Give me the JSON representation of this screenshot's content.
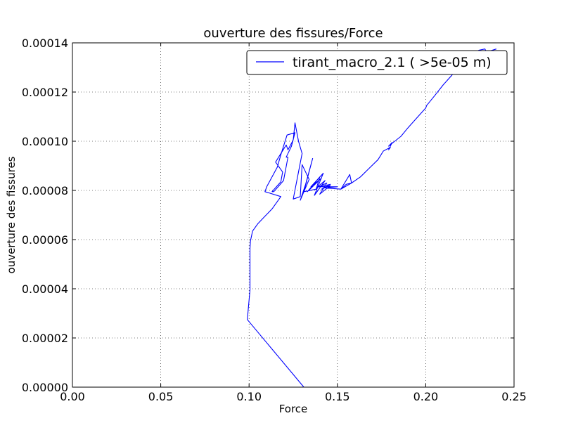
{
  "chart_data": {
    "type": "line",
    "title": "ouverture des fissures/Force",
    "xlabel": "Force",
    "ylabel": "ouverture des fissures",
    "xlim": [
      0,
      0.25
    ],
    "ylim": [
      0,
      0.00014
    ],
    "x_ticks": [
      0.0,
      0.05,
      0.1,
      0.15,
      0.2,
      0.25
    ],
    "x_tick_labels": [
      "0.00",
      "0.05",
      "0.10",
      "0.15",
      "0.20",
      "0.25"
    ],
    "y_ticks": [
      0,
      2e-05,
      4e-05,
      6e-05,
      8e-05,
      0.0001,
      0.00012,
      0.00014
    ],
    "y_tick_labels": [
      "0.00000",
      "0.00002",
      "0.00004",
      "0.00006",
      "0.00008",
      "0.00010",
      "0.00012",
      "0.00014"
    ],
    "grid": true,
    "legend_position": "top-right",
    "series": [
      {
        "name": "tirant_macro_2.1 ( >5e-05 m)",
        "color": "#0000ff",
        "x": [
          0.131,
          0.099,
          0.1005,
          0.1005,
          0.1008,
          0.102,
          0.105,
          0.109,
          0.113,
          0.118,
          0.109,
          0.11,
          0.116,
          0.118,
          0.1215,
          0.126,
          0.124,
          0.121,
          0.122,
          0.1195,
          0.114,
          0.113,
          0.118,
          0.119,
          0.115,
          0.121,
          0.122,
          0.125,
          0.126,
          0.128,
          0.13,
          0.125,
          0.129,
          0.13,
          0.134,
          0.129,
          0.132,
          0.136,
          0.131,
          0.138,
          0.14,
          0.133,
          0.141,
          0.135,
          0.142,
          0.137,
          0.143,
          0.138,
          0.144,
          0.14,
          0.146,
          0.141,
          0.146,
          0.14,
          0.15,
          0.143,
          0.152,
          0.155,
          0.158,
          0.157,
          0.152,
          0.158,
          0.163,
          0.168,
          0.173,
          0.176,
          0.18,
          0.179,
          0.181,
          0.179,
          0.186,
          0.19,
          0.195,
          0.2,
          0.2005,
          0.205,
          0.21,
          0.215,
          0.22,
          0.225,
          0.23,
          0.2335,
          0.235,
          0.2355,
          0.24
        ],
        "y": [
          0.0,
          2.75e-05,
          3.95e-05,
          5.65e-05,
          5.95e-05,
          6.35e-05,
          6.65e-05,
          6.95e-05,
          7.25e-05,
          7.75e-05,
          7.95e-05,
          8.15e-05,
          8.95e-05,
          9.45e-05,
          0.0001025,
          0.0001035,
          9.8e-05,
          9.35e-05,
          9.35e-05,
          8.4e-05,
          7.95e-05,
          7.95e-05,
          8.35e-05,
          8.75e-05,
          9.15e-05,
          9.85e-05,
          9.65e-05,
          0.0001005,
          0.0001075,
          0.0001,
          9.5e-05,
          7.65e-05,
          7.75e-05,
          9.05e-05,
          8.45e-05,
          7.6e-05,
          8.25e-05,
          9.3e-05,
          7.95e-05,
          8.05e-05,
          8.55e-05,
          7.95e-05,
          8.5e-05,
          8.15e-05,
          8.7e-05,
          7.8e-05,
          8.4e-05,
          8.1e-05,
          8.3e-05,
          7.85e-05,
          8.2e-05,
          8.05e-05,
          8.25e-05,
          8.15e-05,
          8.15e-05,
          8.1e-05,
          8.05e-05,
          8.25e-05,
          8.3e-05,
          8.65e-05,
          8.05e-05,
          8.3e-05,
          8.55e-05,
          8.9e-05,
          9.25e-05,
          9.6e-05,
          9.75e-05,
          9.65e-05,
          9.95e-05,
          9.8e-05,
          0.000102,
          0.0001055,
          0.0001095,
          0.0001135,
          0.0001145,
          0.0001185,
          0.000123,
          0.000127,
          0.0001305,
          0.0001325,
          0.000137,
          0.0001375,
          0.0001355,
          0.0001365,
          0.0001375
        ]
      }
    ]
  }
}
